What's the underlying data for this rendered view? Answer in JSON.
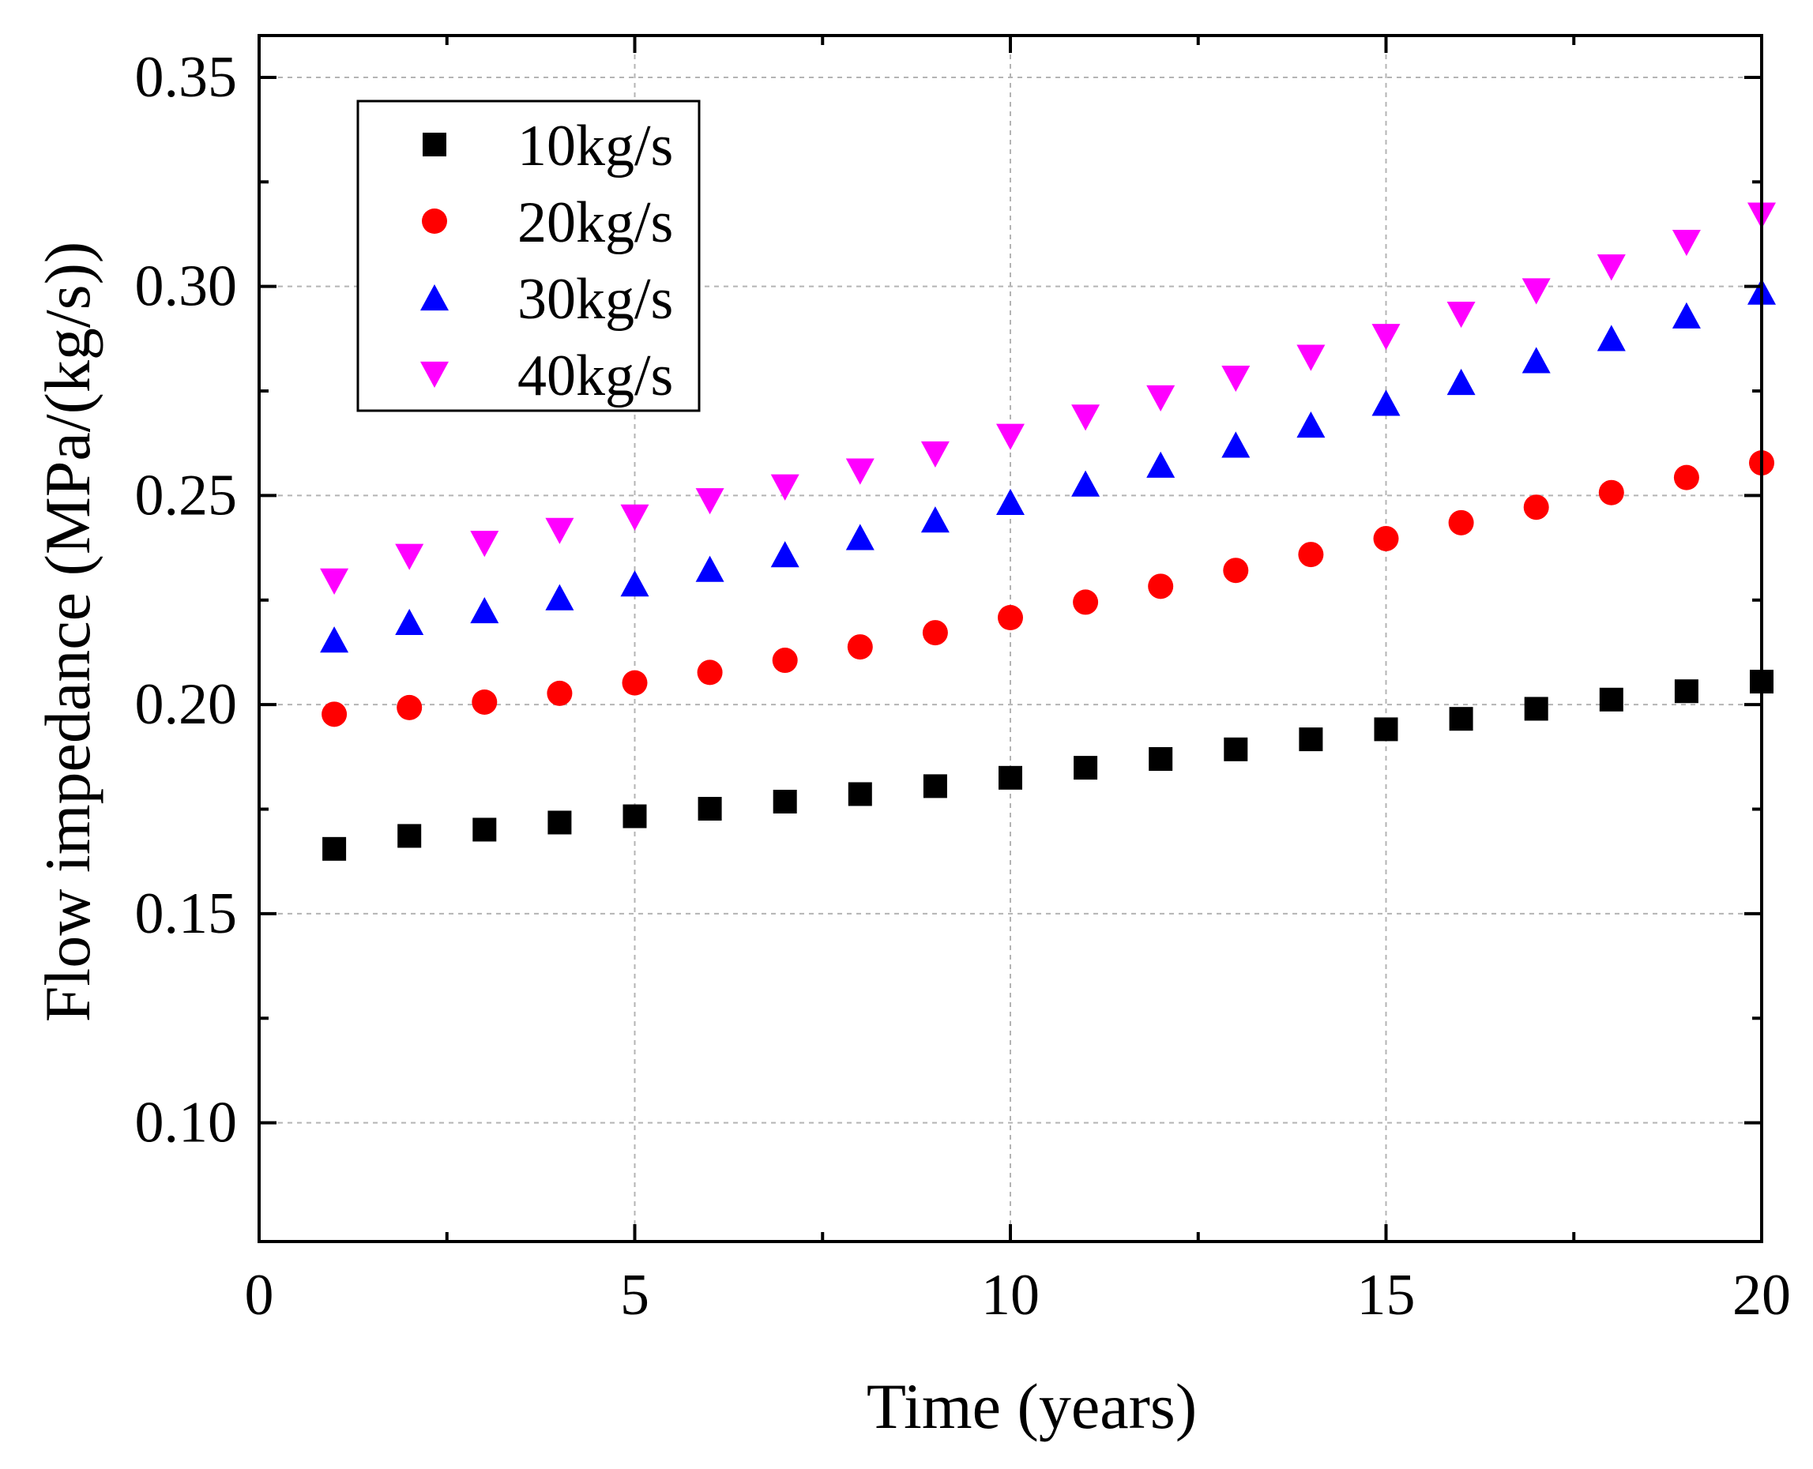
{
  "chart_data": {
    "type": "scatter",
    "title": "",
    "xlabel": "Time (years)",
    "ylabel": "Flow impedance (MPa/(kg/s))",
    "xlim": [
      0,
      20
    ],
    "ylim": [
      0.0716,
      0.36
    ],
    "x_ticks": [
      0,
      5,
      10,
      15,
      20
    ],
    "x_tick_labels": [
      "0",
      "5",
      "10",
      "15",
      "20"
    ],
    "x_minor_ticks": [
      2.5,
      7.5,
      12.5,
      17.5
    ],
    "y_ticks": [
      0.1,
      0.15,
      0.2,
      0.25,
      0.3,
      0.35
    ],
    "y_tick_labels": [
      "0.10",
      "0.15",
      "0.20",
      "0.25",
      "0.30",
      "0.35"
    ],
    "y_minor_ticks": [
      0.125,
      0.175,
      0.225,
      0.275,
      0.325
    ],
    "grid": true,
    "legend_position": "top-left",
    "x": [
      1,
      2,
      3,
      4,
      5,
      6,
      7,
      8,
      9,
      10,
      11,
      12,
      13,
      14,
      15,
      16,
      17,
      18,
      19,
      20
    ],
    "series": [
      {
        "name": "10kg/s",
        "marker": "square",
        "color": "#000000",
        "values": [
          0.1655,
          0.1686,
          0.1701,
          0.1718,
          0.1733,
          0.1751,
          0.1768,
          0.1786,
          0.1805,
          0.1825,
          0.1849,
          0.187,
          0.1893,
          0.1917,
          0.1941,
          0.1966,
          0.199,
          0.2012,
          0.2032,
          0.2055
        ]
      },
      {
        "name": "20kg/s",
        "marker": "circle",
        "color": "#ff0000",
        "values": [
          0.1977,
          0.1993,
          0.2006,
          0.2027,
          0.2052,
          0.2077,
          0.2106,
          0.2138,
          0.2172,
          0.2208,
          0.2245,
          0.2283,
          0.2321,
          0.2359,
          0.2397,
          0.2435,
          0.2472,
          0.2507,
          0.2543,
          0.2578
        ]
      },
      {
        "name": "30kg/s",
        "marker": "triangle-up",
        "color": "#0000ff",
        "values": [
          0.2155,
          0.2197,
          0.2225,
          0.2256,
          0.2289,
          0.2324,
          0.2359,
          0.24,
          0.2442,
          0.2484,
          0.2528,
          0.2573,
          0.2621,
          0.2669,
          0.2721,
          0.2771,
          0.2823,
          0.2876,
          0.293,
          0.2987
        ]
      },
      {
        "name": "40kg/s",
        "marker": "triangle-down",
        "color": "#ff00ff",
        "values": [
          0.2295,
          0.2354,
          0.2385,
          0.2416,
          0.2448,
          0.2487,
          0.252,
          0.2558,
          0.2599,
          0.2641,
          0.2687,
          0.2733,
          0.278,
          0.283,
          0.288,
          0.2933,
          0.2989,
          0.3046,
          0.3105,
          0.317
        ]
      }
    ]
  }
}
